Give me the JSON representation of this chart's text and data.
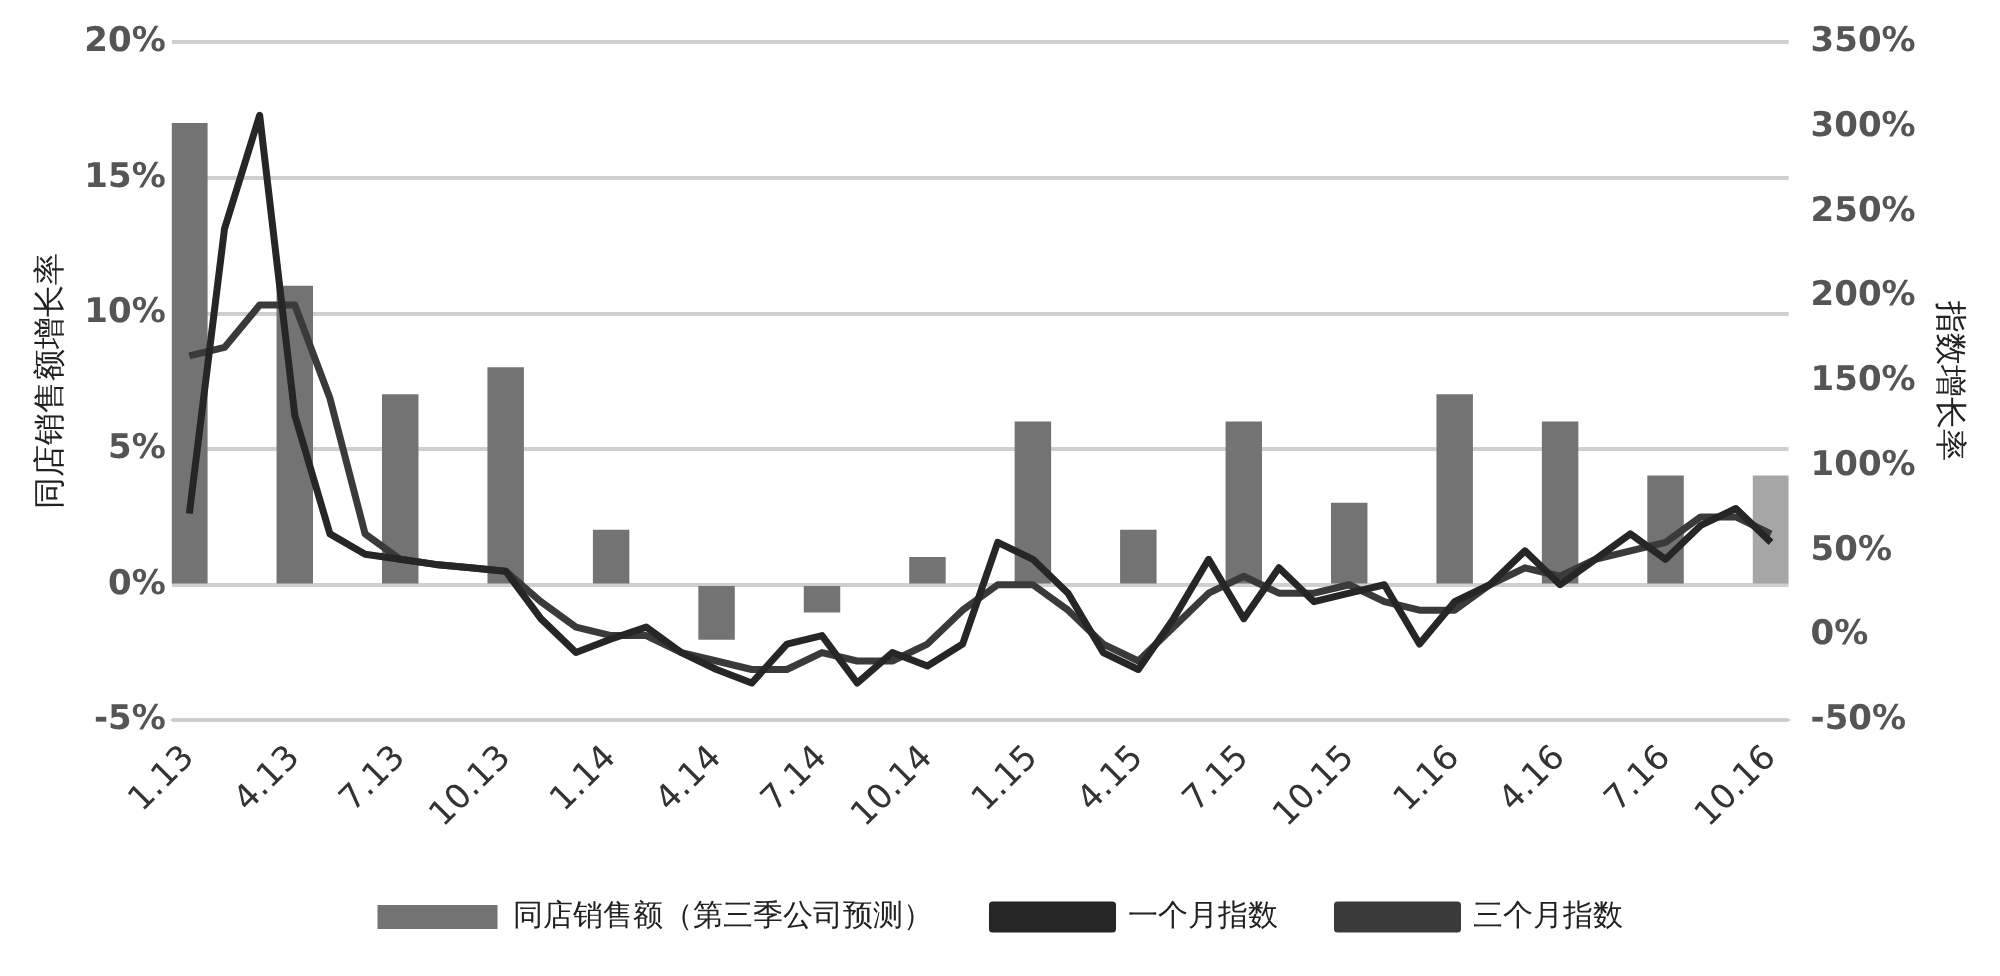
{
  "chart_data": {
    "type": "bar",
    "ylabel": "同店销售额增长率",
    "y2label": "指数增长率",
    "categories": [
      "1.13",
      null,
      null,
      "4.13",
      null,
      null,
      "7.13",
      null,
      null,
      "10.13",
      null,
      null,
      "1.14",
      null,
      null,
      "4.14",
      null,
      null,
      "7.14",
      null,
      null,
      "10.14",
      null,
      null,
      "1.15",
      null,
      null,
      "4.15",
      null,
      null,
      "7.15",
      null,
      null,
      "10.15",
      null,
      null,
      "1.16",
      null,
      null,
      "4.16",
      null,
      null,
      "7.16",
      null,
      null,
      "10.16"
    ],
    "series": [
      {
        "name": "同店销售额（第三季公司预测）",
        "color": "#737373",
        "colors": [
          "#737373",
          null,
          null,
          "#737373",
          null,
          null,
          "#737373",
          null,
          null,
          "#737373",
          null,
          null,
          "#737373",
          null,
          null,
          "#737373",
          null,
          null,
          "#737373",
          null,
          null,
          "#737373",
          null,
          null,
          "#737373",
          null,
          null,
          "#737373",
          null,
          null,
          "#737373",
          null,
          null,
          "#737373",
          null,
          null,
          "#737373",
          null,
          null,
          "#737373",
          null,
          null,
          "#737373",
          null,
          null,
          "#a6a6a6"
        ],
        "values": [
          17,
          null,
          null,
          11,
          null,
          null,
          7,
          null,
          null,
          8,
          null,
          null,
          2,
          null,
          null,
          -2,
          null,
          null,
          -1,
          null,
          null,
          1,
          null,
          null,
          6,
          null,
          null,
          2,
          null,
          null,
          6,
          null,
          null,
          3,
          null,
          null,
          7,
          null,
          null,
          6,
          null,
          null,
          4,
          null,
          null,
          4
        ]
      },
      {
        "name": "一个月指数",
        "type": "line",
        "axis": "y2",
        "color": "#262626",
        "values": [
          72,
          240,
          307,
          130,
          60,
          48,
          45,
          42,
          40,
          38,
          10,
          -10,
          -2,
          5,
          -10,
          -20,
          -28,
          -5,
          0,
          -28,
          -10,
          -18,
          -5,
          55,
          45,
          25,
          -10,
          -20,
          10,
          45,
          10,
          40,
          20,
          25,
          30,
          -5,
          20,
          30,
          50,
          30,
          45,
          60,
          45,
          65,
          75,
          55
        ]
      },
      {
        "name": "三个月指数",
        "type": "line",
        "axis": "y2",
        "color": "#3a3a3a",
        "values": [
          165,
          170,
          195,
          195,
          140,
          60,
          45,
          42,
          40,
          38,
          20,
          5,
          0,
          0,
          -10,
          -15,
          -20,
          -20,
          -10,
          -15,
          -15,
          -5,
          15,
          30,
          30,
          15,
          -5,
          -15,
          5,
          25,
          35,
          25,
          25,
          30,
          20,
          15,
          15,
          30,
          40,
          35,
          45,
          50,
          55,
          70,
          70,
          60
        ]
      }
    ],
    "ylim": [
      -5,
      20
    ],
    "yticks": [
      {
        "value": -5,
        "label": "-5%"
      },
      {
        "value": 0,
        "label": "0%"
      },
      {
        "value": 5,
        "label": "5%"
      },
      {
        "value": 10,
        "label": "10%"
      },
      {
        "value": 15,
        "label": "15%"
      },
      {
        "value": 20,
        "label": "20%"
      }
    ],
    "y2lim": [
      -50,
      350
    ],
    "y2ticks": [
      {
        "value": -50,
        "label": "-50%"
      },
      {
        "value": 0,
        "label": "0%"
      },
      {
        "value": 50,
        "label": "50%"
      },
      {
        "value": 100,
        "label": "100%"
      },
      {
        "value": 150,
        "label": "150%"
      },
      {
        "value": 200,
        "label": "200%"
      },
      {
        "value": 250,
        "label": "250%"
      },
      {
        "value": 300,
        "label": "300%"
      },
      {
        "value": 350,
        "label": "350%"
      }
    ],
    "grid": "y",
    "legend": "bottom"
  }
}
